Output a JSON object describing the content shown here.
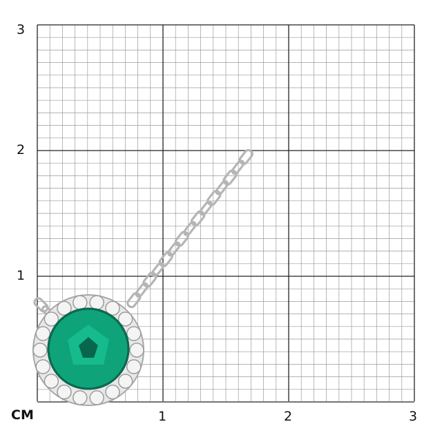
{
  "scale": {
    "unit_label": "CM",
    "y_ticks": [
      "1",
      "2",
      "3"
    ],
    "x_ticks": [
      "1",
      "2",
      "3"
    ]
  },
  "product": {
    "type": "pendant-necklace",
    "stone_color": "#0fa37a",
    "metal_color": "#c8c8c8"
  }
}
